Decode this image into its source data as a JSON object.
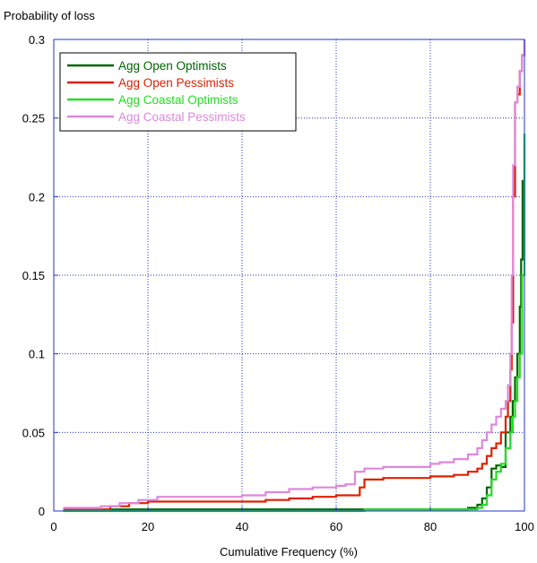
{
  "chart_data": {
    "type": "line",
    "title": "",
    "ylabel": "Probability of loss",
    "xlabel": "Cumulative Frequency (%)",
    "xlim": [
      0,
      100
    ],
    "ylim": [
      0,
      0.3
    ],
    "x_ticks": [
      0,
      20,
      40,
      60,
      80,
      100
    ],
    "y_ticks": [
      0,
      0.05,
      0.1,
      0.15,
      0.2,
      0.25,
      0.3
    ],
    "x_tick_labels": [
      "0",
      "20",
      "40",
      "60",
      "80",
      "100"
    ],
    "y_tick_labels": [
      "0",
      "0.05",
      "0.1",
      "0.15",
      "0.2",
      "0.25",
      "0.3"
    ],
    "grid": true,
    "legend_position": "top-left",
    "series": [
      {
        "name": "Agg Open Optimists",
        "color": "#006400",
        "x": [
          2,
          20,
          40,
          60,
          80,
          85,
          88,
          90,
          91,
          92,
          93,
          94,
          95,
          96,
          97,
          97.5,
          98,
          98.5,
          99,
          99.3,
          99.6,
          100
        ],
        "y": [
          0.001,
          0.001,
          0.001,
          0.001,
          0.001,
          0.001,
          0.002,
          0.004,
          0.008,
          0.015,
          0.027,
          0.029,
          0.028,
          0.05,
          0.06,
          0.07,
          0.085,
          0.1,
          0.13,
          0.16,
          0.21,
          0.24
        ]
      },
      {
        "name": "Agg Open Pessimists",
        "color": "#e02000",
        "x": [
          2,
          12,
          16,
          20,
          25,
          40,
          45,
          50,
          55,
          60,
          63,
          65,
          66,
          67,
          70,
          75,
          80,
          85,
          88,
          90,
          91,
          92,
          93,
          94,
          95,
          96,
          96.5,
          97,
          97.3,
          97.6,
          98,
          98.5,
          99,
          99.5,
          100
        ],
        "y": [
          0.001,
          0.003,
          0.005,
          0.006,
          0.006,
          0.006,
          0.007,
          0.008,
          0.009,
          0.01,
          0.01,
          0.015,
          0.02,
          0.02,
          0.021,
          0.021,
          0.022,
          0.023,
          0.025,
          0.027,
          0.03,
          0.035,
          0.04,
          0.043,
          0.05,
          0.06,
          0.07,
          0.09,
          0.12,
          0.2,
          0.26,
          0.265,
          0.28,
          0.29,
          0.3
        ]
      },
      {
        "name": "Agg Coastal Optimists",
        "color": "#22dd22",
        "x": [
          2,
          20,
          40,
          60,
          63,
          66,
          70,
          80,
          85,
          88,
          90,
          91,
          92,
          93,
          94,
          95,
          96,
          97,
          97.5,
          98,
          98.5,
          99,
          99.5,
          100
        ],
        "y": [
          0,
          0,
          0,
          0,
          0,
          0.001,
          0.001,
          0.001,
          0.001,
          0.001,
          0.002,
          0.004,
          0.01,
          0.02,
          0.025,
          0.03,
          0.04,
          0.05,
          0.06,
          0.07,
          0.085,
          0.1,
          0.15,
          0.24
        ]
      },
      {
        "name": "Agg Coastal Pessimists",
        "color": "#dd88dd",
        "x": [
          2,
          10,
          14,
          18,
          22,
          30,
          40,
          45,
          50,
          55,
          60,
          62,
          64,
          66,
          70,
          75,
          80,
          82,
          85,
          88,
          90,
          91,
          92,
          93,
          94,
          95,
          96,
          96.5,
          97,
          97.3,
          97.6,
          98,
          98.5,
          99,
          99.5,
          100
        ],
        "y": [
          0.002,
          0.003,
          0.005,
          0.007,
          0.009,
          0.009,
          0.01,
          0.012,
          0.014,
          0.015,
          0.016,
          0.017,
          0.025,
          0.027,
          0.028,
          0.028,
          0.03,
          0.031,
          0.033,
          0.036,
          0.04,
          0.045,
          0.05,
          0.055,
          0.06,
          0.065,
          0.07,
          0.08,
          0.1,
          0.15,
          0.22,
          0.26,
          0.27,
          0.28,
          0.29,
          0.3
        ]
      }
    ]
  }
}
